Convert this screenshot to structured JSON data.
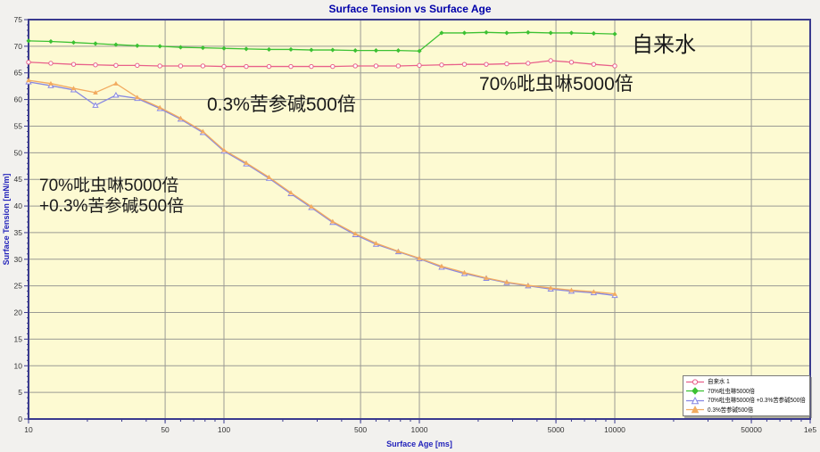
{
  "title": "Surface Tension vs Surface Age",
  "colors": {
    "page_bg": "#f2f1ee",
    "plot_bg": "#fdfad2",
    "grid": "#9a9a94",
    "frame": "#3a3a8e",
    "title_text": "#0000aa",
    "axis_title_text": "#2323bb",
    "tick_text": "#333333",
    "annotation_text": "#1a1a1a",
    "legend_bg": "#ffffff",
    "series_tapwater": "#e8608a",
    "series_imidacloprid": "#3cc132",
    "series_mixture": "#8787e2",
    "series_matrine": "#f2ab60"
  },
  "axes": {
    "x": {
      "title": "Surface Age [ms]",
      "scale": "log",
      "min": 10,
      "max": 100000,
      "major_ticks": [
        10,
        50,
        100,
        500,
        1000,
        5000,
        10000,
        50000,
        100000
      ],
      "tick_labels": [
        "10",
        "50",
        "100",
        "500",
        "1000",
        "5000",
        "10000",
        "50000",
        "1e5"
      ],
      "gridlines": [
        50,
        100,
        500,
        1000,
        5000,
        10000,
        50000
      ]
    },
    "y": {
      "title": "Surface Tension [mN/m]",
      "min": 0,
      "max": 75,
      "major_step": 5,
      "tick_labels": [
        "0",
        "5",
        "10",
        "15",
        "20",
        "25",
        "30",
        "35",
        "40",
        "45",
        "50",
        "55",
        "60",
        "65",
        "70",
        "75"
      ]
    }
  },
  "annotations": {
    "tap_water": "自来水",
    "imidacloprid": "70%吡虫啉5000倍",
    "matrine": "0.3%苦参碱500倍",
    "mixture_line1": "70%吡虫啉5000倍",
    "mixture_line2": "+0.3%苦参碱500倍"
  },
  "legend": {
    "items": [
      {
        "label": "自来水 1"
      },
      {
        "label": "70%吡虫啉5000倍"
      },
      {
        "label": "70%吡虫啉5000倍 +0.3%苦参碱500倍"
      },
      {
        "label": "0.3%苦参碱500倍"
      }
    ]
  },
  "chart_data": {
    "type": "line",
    "title": "Surface Tension vs Surface Age",
    "xlabel": "Surface Age [ms]",
    "ylabel": "Surface Tension [mN/m]",
    "x_scale": "log",
    "xlim": [
      10,
      100000
    ],
    "ylim": [
      0,
      75
    ],
    "grid": true,
    "legend_position": "bottom-right",
    "series": [
      {
        "name": "自来水 1",
        "color": "#e8608a",
        "marker": "circle-open",
        "x": [
          10,
          13,
          17,
          22,
          28,
          36,
          47,
          60,
          78,
          100,
          130,
          170,
          220,
          280,
          360,
          470,
          600,
          780,
          1000,
          1300,
          1700,
          2200,
          2800,
          3600,
          4700,
          6000,
          7800,
          10000
        ],
        "y": [
          67.0,
          66.8,
          66.6,
          66.5,
          66.4,
          66.4,
          66.3,
          66.3,
          66.3,
          66.2,
          66.2,
          66.2,
          66.2,
          66.2,
          66.2,
          66.3,
          66.3,
          66.3,
          66.4,
          66.5,
          66.6,
          66.6,
          66.7,
          66.8,
          67.3,
          67.0,
          66.6,
          66.3
        ]
      },
      {
        "name": "70%吡虫啉5000倍",
        "color": "#3cc132",
        "marker": "diamond-filled",
        "x": [
          10,
          13,
          17,
          22,
          28,
          36,
          47,
          60,
          78,
          100,
          130,
          170,
          220,
          280,
          360,
          470,
          600,
          780,
          1000,
          1300,
          1700,
          2200,
          2800,
          3600,
          4700,
          6000,
          7800,
          10000
        ],
        "y": [
          71.0,
          70.9,
          70.7,
          70.5,
          70.3,
          70.1,
          70.0,
          69.8,
          69.7,
          69.6,
          69.5,
          69.4,
          69.4,
          69.3,
          69.3,
          69.2,
          69.2,
          69.2,
          69.1,
          72.5,
          72.5,
          72.6,
          72.5,
          72.6,
          72.5,
          72.5,
          72.4,
          72.3
        ]
      },
      {
        "name": "70%吡虫啉5000倍 +0.3%苦参碱500倍",
        "color": "#8787e2",
        "marker": "triangle-open",
        "x": [
          10,
          13,
          17,
          22,
          28,
          36,
          47,
          60,
          78,
          100,
          130,
          170,
          220,
          280,
          360,
          470,
          600,
          780,
          1000,
          1300,
          1700,
          2200,
          2800,
          3600,
          4700,
          6000,
          7800,
          10000
        ],
        "y": [
          63.3,
          62.6,
          61.8,
          58.9,
          60.8,
          60.2,
          58.3,
          56.3,
          53.8,
          50.3,
          47.9,
          45.2,
          42.3,
          39.7,
          36.9,
          34.6,
          32.8,
          31.4,
          30.1,
          28.5,
          27.3,
          26.4,
          25.6,
          25.0,
          24.4,
          24.0,
          23.7,
          23.2
        ]
      },
      {
        "name": "0.3%苦参碱500倍",
        "color": "#f2ab60",
        "marker": "triangle-filled",
        "x": [
          10,
          13,
          17,
          22,
          28,
          36,
          47,
          60,
          78,
          100,
          130,
          170,
          220,
          280,
          360,
          470,
          600,
          780,
          1000,
          1300,
          1700,
          2200,
          2800,
          3600,
          4700,
          6000,
          7800,
          10000
        ],
        "y": [
          63.6,
          63.0,
          62.1,
          61.3,
          63.0,
          60.4,
          58.5,
          56.5,
          54.0,
          50.5,
          48.1,
          45.4,
          42.5,
          39.9,
          37.1,
          34.8,
          33.0,
          31.5,
          30.2,
          28.7,
          27.5,
          26.5,
          25.7,
          25.1,
          24.6,
          24.2,
          23.9,
          23.5
        ]
      }
    ]
  }
}
